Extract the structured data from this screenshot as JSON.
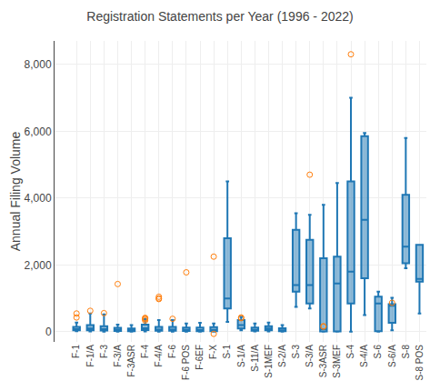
{
  "chart_data": {
    "type": "box",
    "title": "Registration Statements per Year (1996 - 2022)",
    "ylabel": "Annual Filing Volume",
    "categories": [
      "F-1",
      "F-1/A",
      "F-3",
      "F-3/A",
      "F-3ASR",
      "F-4",
      "F-4/A",
      "F-6",
      "F-6 POS",
      "F-6EF",
      "F-X",
      "S-1",
      "S-1/A",
      "S-11/A",
      "S-1MEF",
      "S-2/A",
      "S-3",
      "S-3/A",
      "S-3ASR",
      "S-3MEF",
      "S-4",
      "S-4/A",
      "S-6",
      "S-6/A",
      "S-8",
      "S-8 POS"
    ],
    "box_stats": [
      {
        "whislo": 20,
        "q1": 50,
        "med": 80,
        "q3": 150,
        "whishi": 280,
        "fliers": [
          430,
          550
        ]
      },
      {
        "whislo": 15,
        "q1": 50,
        "med": 100,
        "q3": 200,
        "whishi": 550,
        "fliers": [
          630
        ]
      },
      {
        "whislo": 5,
        "q1": 40,
        "med": 80,
        "q3": 170,
        "whishi": 520,
        "fliers": [
          560
        ]
      },
      {
        "whislo": 5,
        "q1": 25,
        "med": 60,
        "q3": 120,
        "whishi": 220,
        "fliers": [
          1430
        ]
      },
      {
        "whislo": 5,
        "q1": 20,
        "med": 50,
        "q3": 100,
        "whishi": 200,
        "fliers": []
      },
      {
        "whislo": 10,
        "q1": 55,
        "med": 110,
        "q3": 220,
        "whishi": 380,
        "fliers": [
          420,
          400,
          380,
          340
        ]
      },
      {
        "whislo": 5,
        "q1": 30,
        "med": 70,
        "q3": 150,
        "whishi": 350,
        "fliers": [
          1050,
          1000,
          980
        ]
      },
      {
        "whislo": 5,
        "q1": 30,
        "med": 70,
        "q3": 150,
        "whishi": 350,
        "fliers": [
          390
        ]
      },
      {
        "whislo": 5,
        "q1": 25,
        "med": 60,
        "q3": 130,
        "whishi": 250,
        "fliers": [
          1780
        ]
      },
      {
        "whislo": 5,
        "q1": 20,
        "med": 55,
        "q3": 130,
        "whishi": 270,
        "fliers": []
      },
      {
        "whislo": 5,
        "q1": 20,
        "med": 60,
        "q3": 140,
        "whishi": 250,
        "fliers": [
          2250,
          -60
        ]
      },
      {
        "whislo": 300,
        "q1": 700,
        "med": 1000,
        "q3": 2800,
        "whishi": 4500,
        "fliers": []
      },
      {
        "whislo": 50,
        "q1": 100,
        "med": 200,
        "q3": 350,
        "whishi": 450,
        "fliers": [
          430,
          410
        ]
      },
      {
        "whislo": 10,
        "q1": 30,
        "med": 60,
        "q3": 130,
        "whishi": 250,
        "fliers": []
      },
      {
        "whislo": 10,
        "q1": 50,
        "med": 100,
        "q3": 170,
        "whishi": 280,
        "fliers": []
      },
      {
        "whislo": 5,
        "q1": 20,
        "med": 50,
        "q3": 110,
        "whishi": 200,
        "fliers": []
      },
      {
        "whislo": 750,
        "q1": 1200,
        "med": 1400,
        "q3": 3050,
        "whishi": 3550,
        "fliers": []
      },
      {
        "whislo": 700,
        "q1": 850,
        "med": 1400,
        "q3": 2750,
        "whishi": 3500,
        "fliers": [
          4700
        ]
      },
      {
        "whislo": 5,
        "q1": 10,
        "med": 80,
        "q3": 2200,
        "whishi": 3800,
        "fliers": [
          170,
          155
        ]
      },
      {
        "whislo": 5,
        "q1": 10,
        "med": 1450,
        "q3": 2250,
        "whishi": 4450,
        "fliers": []
      },
      {
        "whislo": 5,
        "q1": 850,
        "med": 1800,
        "q3": 4500,
        "whishi": 7000,
        "fliers": [
          8300
        ]
      },
      {
        "whislo": 500,
        "q1": 1600,
        "med": 3350,
        "q3": 5850,
        "whishi": 5950,
        "fliers": []
      },
      {
        "whislo": 5,
        "q1": 20,
        "med": 850,
        "q3": 1050,
        "whishi": 1200,
        "fliers": []
      },
      {
        "whislo": 50,
        "q1": 270,
        "med": 780,
        "q3": 830,
        "whishi": 1020,
        "fliers": [
          870
        ]
      },
      {
        "whislo": 1900,
        "q1": 2050,
        "med": 2550,
        "q3": 4100,
        "whishi": 5800,
        "fliers": []
      },
      {
        "whislo": 550,
        "q1": 1500,
        "med": 1580,
        "q3": 2600,
        "whishi": 2400,
        "fliers": []
      }
    ],
    "ylim": [
      -300,
      8700
    ],
    "yticks": [
      0,
      {
        "value": 2000,
        "label": "2,000"
      },
      {
        "value": 4000,
        "label": "4,000"
      },
      {
        "value": 6000,
        "label": "6,000"
      },
      {
        "value": 8000,
        "label": "8,000"
      }
    ],
    "grid": true
  }
}
